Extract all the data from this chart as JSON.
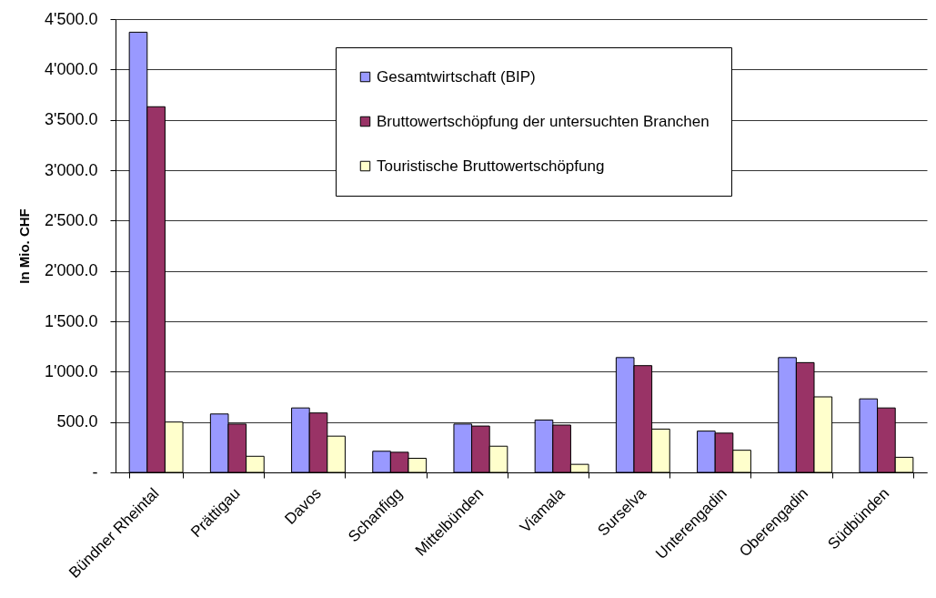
{
  "chart_data": {
    "type": "bar",
    "ylabel": "In Mio. CHF",
    "categories": [
      "Bündner Rheintal",
      "Prättigau",
      "Davos",
      "Schanfigg",
      "Mittelbünden",
      "Viamala",
      "Surselva",
      "Unterengadin",
      "Oberengadin",
      "Südbünden"
    ],
    "series": [
      {
        "name": "Gesamtwirtschaft (BIP)",
        "color": "#9999ff",
        "values": [
          4370,
          580,
          640,
          210,
          480,
          520,
          1140,
          410,
          1140,
          730
        ]
      },
      {
        "name": "Bruttowertschöpfung der untersuchten Branchen",
        "color": "#993366",
        "values": [
          3630,
          480,
          590,
          200,
          460,
          470,
          1060,
          390,
          1090,
          640
        ]
      },
      {
        "name": "Touristische Bruttowertschöpfung",
        "color": "#ffffcc",
        "values": [
          500,
          160,
          360,
          140,
          260,
          80,
          430,
          220,
          750,
          150
        ]
      }
    ],
    "ylim": [
      0,
      4500
    ],
    "yticks": [
      {
        "value": 0,
        "label": "-"
      },
      {
        "value": 500,
        "label": "500.0"
      },
      {
        "value": 1000,
        "label": "1'000.0"
      },
      {
        "value": 1500,
        "label": "1'500.0"
      },
      {
        "value": 2000,
        "label": "2'000.0"
      },
      {
        "value": 2500,
        "label": "2'500.0"
      },
      {
        "value": 3000,
        "label": "3'000.0"
      },
      {
        "value": 3500,
        "label": "3'500.0"
      },
      {
        "value": 4000,
        "label": "4'000.0"
      },
      {
        "value": 4500,
        "label": "4'500.0"
      }
    ],
    "grid": "y",
    "legend": "top right"
  }
}
